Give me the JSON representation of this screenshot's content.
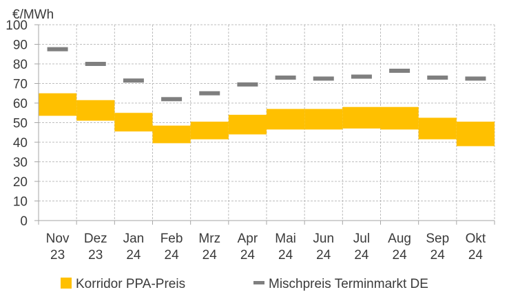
{
  "chart_data": {
    "type": "bar",
    "ylabel": "€/MWh",
    "ylim": [
      0,
      100
    ],
    "yticks": [
      "0",
      "10",
      "20",
      "30",
      "40",
      "50",
      "60",
      "70",
      "80",
      "90",
      "100"
    ],
    "grid": true,
    "legend_position": "bottom",
    "categories": [
      [
        "Nov",
        "23"
      ],
      [
        "Dez",
        "23"
      ],
      [
        "Jan",
        "24"
      ],
      [
        "Feb",
        "24"
      ],
      [
        "Mrz",
        "24"
      ],
      [
        "Apr",
        "24"
      ],
      [
        "Mai",
        "24"
      ],
      [
        "Jun",
        "24"
      ],
      [
        "Jul",
        "24"
      ],
      [
        "Aug",
        "24"
      ],
      [
        "Sep",
        "24"
      ],
      [
        "Okt",
        "24"
      ]
    ],
    "series": [
      {
        "name": "Korridor PPA-Preis",
        "kind": "range-bar",
        "color": "#FFC000",
        "low": [
          53.5,
          51,
          45.5,
          39.5,
          41.5,
          44,
          46.5,
          46.5,
          47,
          46.5,
          41.5,
          38
        ],
        "high": [
          65,
          61.5,
          55,
          48.5,
          50.5,
          54,
          57,
          57,
          58,
          58,
          52.5,
          50.5
        ]
      },
      {
        "name": "Mischpreis Terminmarkt DE",
        "kind": "marker",
        "color": "#7F7F7F",
        "values": [
          87.5,
          80,
          71.5,
          62,
          65,
          69.5,
          73,
          72.5,
          73.5,
          76.5,
          73,
          72.5
        ]
      }
    ]
  }
}
